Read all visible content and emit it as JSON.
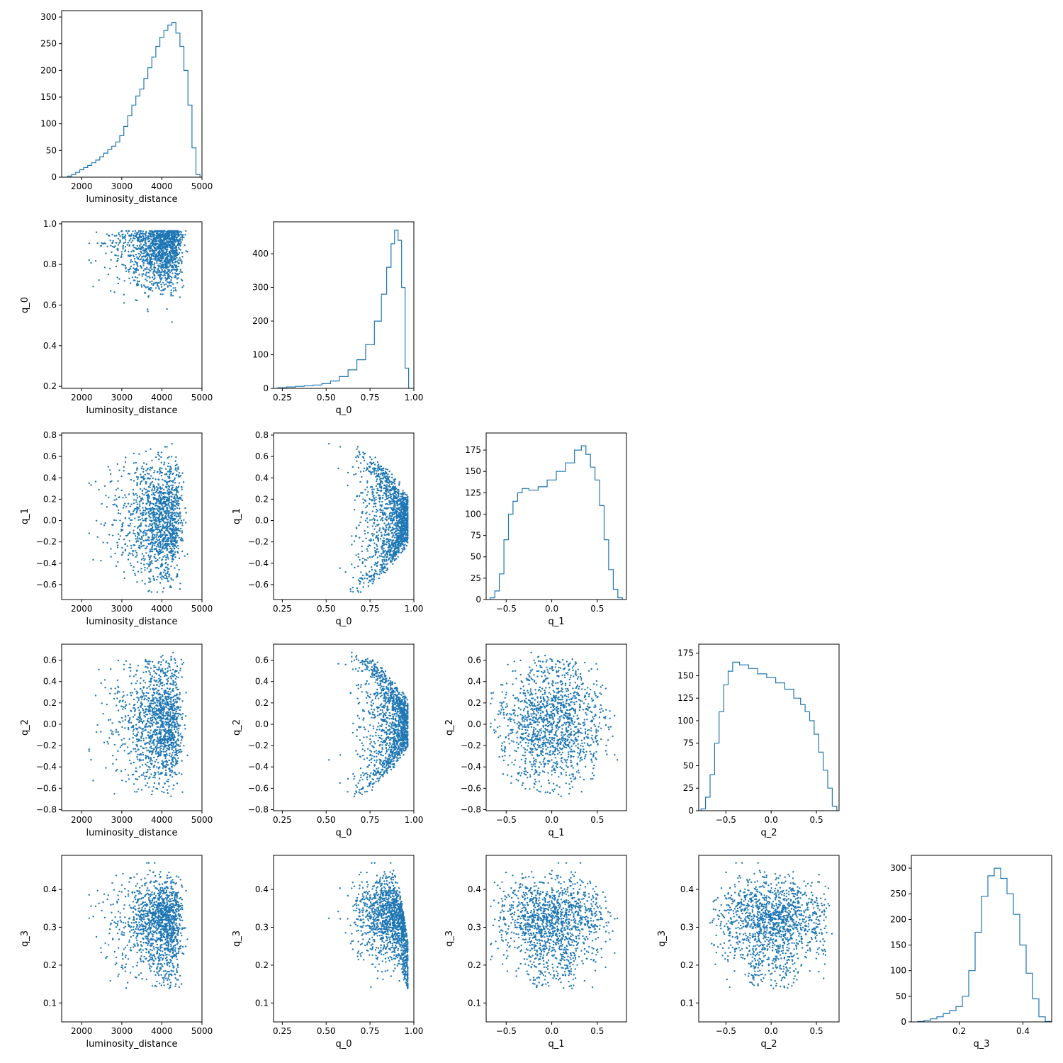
{
  "color": "#1f77b4",
  "chart_data": {
    "type": "corner",
    "parameters": [
      "luminosity_distance",
      "q_0",
      "q_1",
      "q_2",
      "q_3"
    ],
    "axes": {
      "luminosity_distance": {
        "label": "luminosity_distance",
        "lim": [
          1500,
          5000
        ],
        "ticks": [
          2000,
          3000,
          4000,
          5000
        ],
        "tick_labels": [
          "2000",
          "3000",
          "4000",
          "5000"
        ]
      },
      "q_0": {
        "label": "q_0",
        "lim": [
          0.2,
          1.0
        ],
        "ticks": [
          0.25,
          0.5,
          0.75,
          1.0
        ],
        "tick_labels": [
          "0.25",
          "0.50",
          "0.75",
          "1.00"
        ],
        "ylim": [
          0.19,
          1.01
        ],
        "yticks": [
          0.2,
          0.4,
          0.6,
          0.8,
          1.0
        ],
        "ytick_labels": [
          "0.2",
          "0.4",
          "0.6",
          "0.8",
          "1.0"
        ]
      },
      "q_1": {
        "label": "q_1",
        "lim": [
          -0.72,
          0.82
        ],
        "ticks": [
          -0.5,
          0.0,
          0.5
        ],
        "tick_labels": [
          "−0.5",
          "0.0",
          "0.5"
        ],
        "ylim": [
          -0.74,
          0.82
        ],
        "yticks": [
          -0.6,
          -0.4,
          -0.2,
          0.0,
          0.2,
          0.4,
          0.6,
          0.8
        ],
        "ytick_labels": [
          "−0.6",
          "−0.4",
          "−0.2",
          "0.0",
          "0.2",
          "0.4",
          "0.6",
          "0.8"
        ]
      },
      "q_2": {
        "label": "q_2",
        "lim": [
          -0.8,
          0.75
        ],
        "ticks": [
          -0.5,
          0.0,
          0.5
        ],
        "tick_labels": [
          "−0.5",
          "0.0",
          "0.5"
        ],
        "ylim": [
          -0.81,
          0.75
        ],
        "yticks": [
          -0.8,
          -0.6,
          -0.4,
          -0.2,
          0.0,
          0.2,
          0.4,
          0.6
        ],
        "ytick_labels": [
          "−0.8",
          "−0.6",
          "−0.4",
          "−0.2",
          "0.0",
          "0.2",
          "0.4",
          "0.6"
        ]
      },
      "q_3": {
        "label": "q_3",
        "lim": [
          0.05,
          0.49
        ],
        "ticks": [
          0.2,
          0.4
        ],
        "tick_labels": [
          "0.2",
          "0.4"
        ],
        "ylim": [
          0.05,
          0.49
        ],
        "yticks": [
          0.1,
          0.2,
          0.3,
          0.4
        ],
        "ytick_labels": [
          "0.1",
          "0.2",
          "0.3",
          "0.4"
        ]
      }
    },
    "histograms": [
      {
        "parameter": "luminosity_distance",
        "type": "step",
        "ylim": [
          0,
          312
        ],
        "yticks": [
          0,
          50,
          100,
          150,
          200,
          250,
          300
        ],
        "bin_centers": [
          1700,
          1800,
          1900,
          2000,
          2100,
          2200,
          2300,
          2400,
          2500,
          2600,
          2700,
          2800,
          2900,
          3000,
          3100,
          3200,
          3300,
          3400,
          3500,
          3600,
          3700,
          3800,
          3900,
          4000,
          4100,
          4200,
          4300,
          4400,
          4500,
          4600,
          4700,
          4800,
          4900
        ],
        "counts": [
          2,
          5,
          9,
          14,
          18,
          22,
          27,
          32,
          38,
          45,
          52,
          58,
          66,
          78,
          95,
          115,
          135,
          152,
          165,
          185,
          205,
          225,
          245,
          262,
          275,
          285,
          290,
          270,
          245,
          200,
          135,
          55,
          5
        ]
      },
      {
        "parameter": "q_0",
        "type": "step",
        "ylim": [
          0,
          495
        ],
        "yticks": [
          0,
          100,
          200,
          300,
          400
        ],
        "bin_centers": [
          0.25,
          0.3,
          0.35,
          0.4,
          0.45,
          0.5,
          0.55,
          0.6,
          0.65,
          0.7,
          0.75,
          0.8,
          0.83,
          0.86,
          0.88,
          0.9,
          0.92,
          0.94,
          0.96
        ],
        "counts": [
          2,
          4,
          6,
          8,
          10,
          14,
          22,
          35,
          55,
          85,
          130,
          200,
          280,
          360,
          430,
          470,
          440,
          300,
          60
        ]
      },
      {
        "parameter": "q_1",
        "type": "step",
        "ylim": [
          0,
          195
        ],
        "yticks": [
          0,
          25,
          50,
          75,
          100,
          125,
          150,
          175
        ],
        "bin_centers": [
          -0.65,
          -0.6,
          -0.55,
          -0.5,
          -0.45,
          -0.4,
          -0.35,
          -0.3,
          -0.2,
          -0.1,
          0.0,
          0.1,
          0.2,
          0.3,
          0.35,
          0.4,
          0.45,
          0.5,
          0.55,
          0.6,
          0.65,
          0.7,
          0.75
        ],
        "counts": [
          2,
          10,
          30,
          70,
          100,
          115,
          125,
          130,
          128,
          132,
          140,
          150,
          160,
          175,
          180,
          170,
          155,
          140,
          110,
          70,
          35,
          12,
          2
        ]
      },
      {
        "parameter": "q_2",
        "type": "step",
        "ylim": [
          0,
          185
        ],
        "yticks": [
          0,
          25,
          50,
          75,
          100,
          125,
          150,
          175
        ],
        "bin_centers": [
          -0.75,
          -0.7,
          -0.65,
          -0.6,
          -0.55,
          -0.5,
          -0.45,
          -0.4,
          -0.3,
          -0.2,
          -0.1,
          0.0,
          0.1,
          0.2,
          0.3,
          0.35,
          0.4,
          0.45,
          0.5,
          0.55,
          0.6,
          0.65,
          0.7
        ],
        "counts": [
          2,
          15,
          40,
          75,
          110,
          140,
          155,
          165,
          162,
          158,
          152,
          148,
          142,
          135,
          125,
          118,
          110,
          100,
          85,
          65,
          45,
          25,
          5
        ]
      },
      {
        "parameter": "q_3",
        "type": "step",
        "ylim": [
          0,
          325
        ],
        "yticks": [
          0,
          50,
          100,
          150,
          200,
          250,
          300
        ],
        "bin_centers": [
          0.08,
          0.1,
          0.12,
          0.14,
          0.16,
          0.18,
          0.2,
          0.22,
          0.24,
          0.26,
          0.28,
          0.3,
          0.32,
          0.34,
          0.36,
          0.38,
          0.4,
          0.42,
          0.44,
          0.46,
          0.48
        ],
        "counts": [
          1,
          3,
          6,
          10,
          16,
          22,
          30,
          50,
          100,
          175,
          245,
          285,
          300,
          280,
          250,
          210,
          150,
          95,
          45,
          10,
          1
        ]
      }
    ],
    "scatter_panels": [
      {
        "x": "luminosity_distance",
        "y": "q_0"
      },
      {
        "x": "luminosity_distance",
        "y": "q_1"
      },
      {
        "x": "q_0",
        "y": "q_1"
      },
      {
        "x": "luminosity_distance",
        "y": "q_2"
      },
      {
        "x": "q_0",
        "y": "q_2"
      },
      {
        "x": "q_1",
        "y": "q_2"
      },
      {
        "x": "luminosity_distance",
        "y": "q_3"
      },
      {
        "x": "q_0",
        "y": "q_3"
      },
      {
        "x": "q_1",
        "y": "q_3"
      },
      {
        "x": "q_2",
        "y": "q_3"
      }
    ],
    "num_samples_per_scatter": 1400,
    "grid": false,
    "legend": "none"
  }
}
